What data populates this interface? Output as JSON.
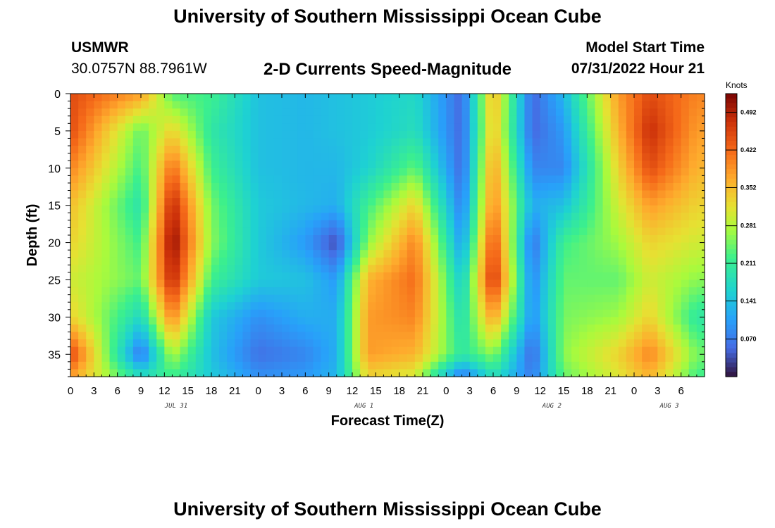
{
  "header": {
    "title": "University of Southern Mississippi Ocean Cube",
    "station_id": "USMWR",
    "coords": "30.0757N  88.7961W",
    "subtitle": "2-D Currents Speed-Magnitude",
    "start_label": "Model Start Time",
    "start_value": "07/31/2022 Hour 21"
  },
  "footer": {
    "title": "University of Southern Mississippi Ocean Cube"
  },
  "chart_data": {
    "type": "heatmap",
    "title": "2-D Currents Speed-Magnitude",
    "xlabel": "Forecast Time(Z)",
    "ylabel": "Depth (ft)",
    "ylim": [
      0,
      38
    ],
    "y_ticks": [
      0,
      5,
      10,
      15,
      20,
      25,
      30,
      35
    ],
    "x_tick_labels": [
      "0",
      "3",
      "6",
      "9",
      "12",
      "15",
      "18",
      "21",
      "0",
      "3",
      "6",
      "9",
      "12",
      "15",
      "18",
      "21",
      "0",
      "3",
      "6",
      "9",
      "12",
      "15",
      "18",
      "21",
      "0",
      "3",
      "6"
    ],
    "date_labels": [
      {
        "label": "JUL 31",
        "tick_index": 4.5
      },
      {
        "label": "AUG 1",
        "tick_index": 12.5
      },
      {
        "label": "AUG 2",
        "tick_index": 20.5
      },
      {
        "label": "AUG 3",
        "tick_index": 25.5
      }
    ],
    "colorbar": {
      "unit": "Knots",
      "range": [
        0.0,
        0.527
      ],
      "tick_values": [
        0.492,
        0.422,
        0.352,
        0.281,
        0.211,
        0.141,
        0.07
      ],
      "tick_labels": [
        "0.492",
        "0.422",
        "0.352",
        "0.281",
        "0.211",
        "0.141",
        "0.070"
      ]
    },
    "z_units": "knots",
    "grid_hours": [
      0,
      9,
      13,
      18,
      24,
      30,
      34,
      38,
      44,
      50,
      54,
      59,
      63,
      70,
      74,
      80
    ],
    "grid_depths": [
      0,
      5,
      10,
      15,
      20,
      25,
      30,
      35,
      38
    ],
    "z": [
      [
        0.45,
        0.38,
        0.23,
        0.22,
        0.14,
        0.13,
        0.14,
        0.15,
        0.17,
        0.05,
        0.36,
        0.05,
        0.13,
        0.38,
        0.45,
        0.4
      ],
      [
        0.45,
        0.24,
        0.33,
        0.2,
        0.14,
        0.13,
        0.14,
        0.15,
        0.18,
        0.05,
        0.35,
        0.05,
        0.1,
        0.36,
        0.48,
        0.38
      ],
      [
        0.4,
        0.22,
        0.42,
        0.22,
        0.14,
        0.13,
        0.13,
        0.16,
        0.24,
        0.05,
        0.38,
        0.08,
        0.08,
        0.33,
        0.45,
        0.36
      ],
      [
        0.35,
        0.19,
        0.49,
        0.25,
        0.15,
        0.13,
        0.12,
        0.22,
        0.33,
        0.07,
        0.4,
        0.12,
        0.14,
        0.3,
        0.38,
        0.33
      ],
      [
        0.33,
        0.22,
        0.52,
        0.26,
        0.15,
        0.1,
        0.03,
        0.26,
        0.4,
        0.1,
        0.45,
        0.06,
        0.22,
        0.27,
        0.33,
        0.3
      ],
      [
        0.3,
        0.24,
        0.49,
        0.22,
        0.15,
        0.14,
        0.1,
        0.36,
        0.42,
        0.15,
        0.48,
        0.08,
        0.24,
        0.24,
        0.3,
        0.26
      ],
      [
        0.33,
        0.17,
        0.4,
        0.15,
        0.09,
        0.12,
        0.12,
        0.38,
        0.4,
        0.18,
        0.38,
        0.09,
        0.25,
        0.27,
        0.33,
        0.2
      ],
      [
        0.46,
        0.06,
        0.28,
        0.14,
        0.06,
        0.08,
        0.12,
        0.38,
        0.36,
        0.2,
        0.26,
        0.05,
        0.26,
        0.33,
        0.4,
        0.25
      ],
      [
        0.38,
        0.18,
        0.22,
        0.15,
        0.09,
        0.1,
        0.13,
        0.33,
        0.3,
        0.06,
        0.18,
        0.07,
        0.24,
        0.31,
        0.36,
        0.22
      ]
    ]
  }
}
